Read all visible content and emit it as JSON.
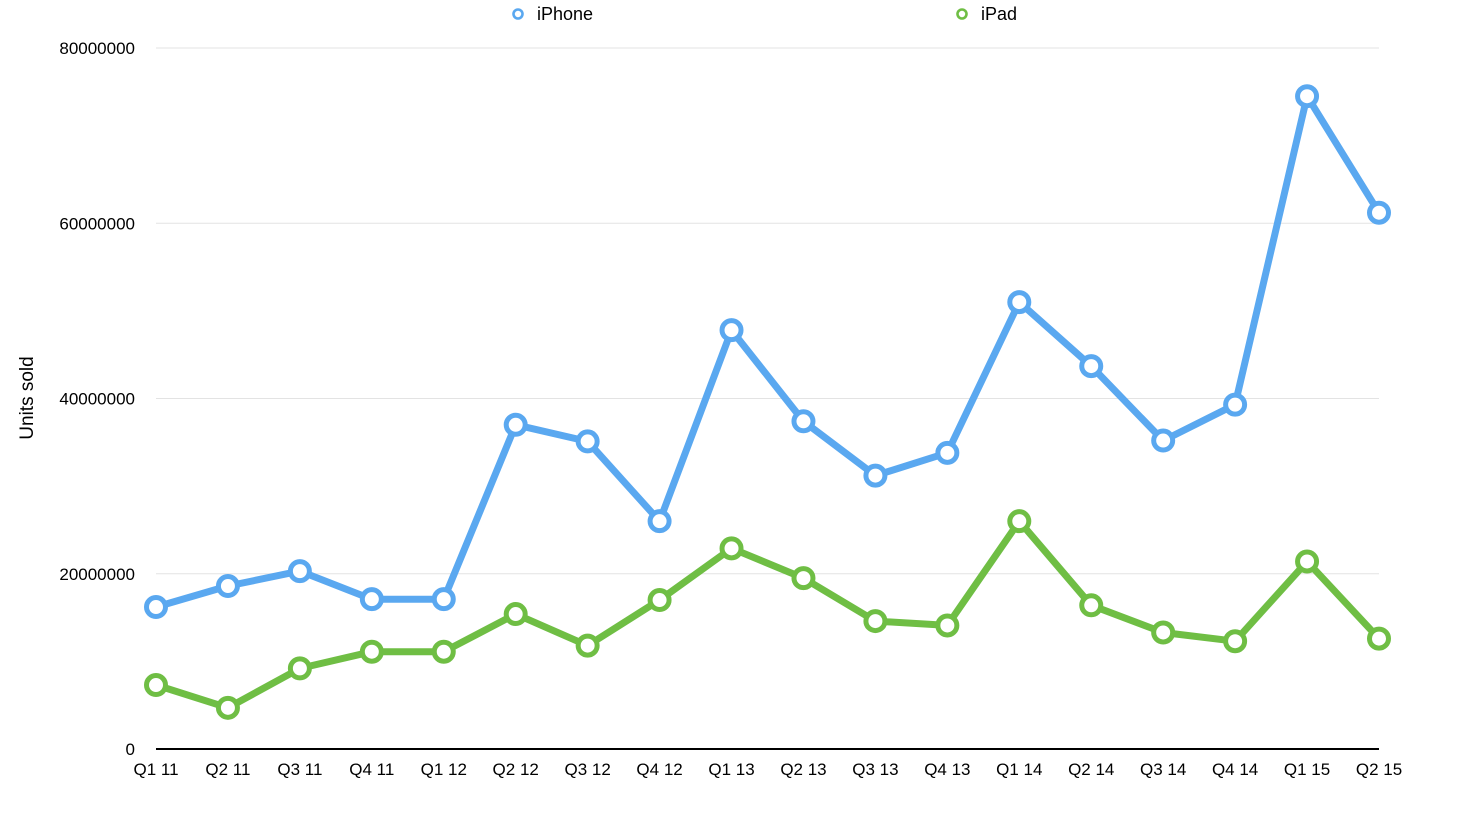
{
  "chart_data": {
    "type": "line",
    "title": "",
    "xlabel": "",
    "ylabel": "Units sold",
    "ylim": [
      0,
      80000000
    ],
    "yticks": [
      "0",
      "20000000",
      "40000000",
      "60000000",
      "80000000"
    ],
    "ytick_values": [
      0,
      20000000,
      40000000,
      60000000,
      80000000
    ],
    "grid": true,
    "legend": "top-center",
    "categories": [
      "Q1 11",
      "Q2 11",
      "Q3 11",
      "Q4 11",
      "Q1 12",
      "Q2 12",
      "Q3 12",
      "Q4 12",
      "Q1 13",
      "Q2 13",
      "Q3 13",
      "Q4 13",
      "Q1 14",
      "Q2 14",
      "Q3 14",
      "Q4 14",
      "Q1 15",
      "Q2 15"
    ],
    "series": [
      {
        "name": "iPhone",
        "color": "#5aa8f0",
        "values": [
          16200000,
          18600000,
          20300000,
          17100000,
          17100000,
          37000000,
          35100000,
          26000000,
          47800000,
          37400000,
          31200000,
          33800000,
          51000000,
          43700000,
          35200000,
          39300000,
          74500000,
          61200000
        ]
      },
      {
        "name": "iPad",
        "color": "#6fbe44",
        "values": [
          7300000,
          4700000,
          9200000,
          11100000,
          11100000,
          15400000,
          11800000,
          17000000,
          22900000,
          19500000,
          14600000,
          14100000,
          26000000,
          16400000,
          13300000,
          12300000,
          21400000,
          12600000
        ]
      }
    ]
  }
}
